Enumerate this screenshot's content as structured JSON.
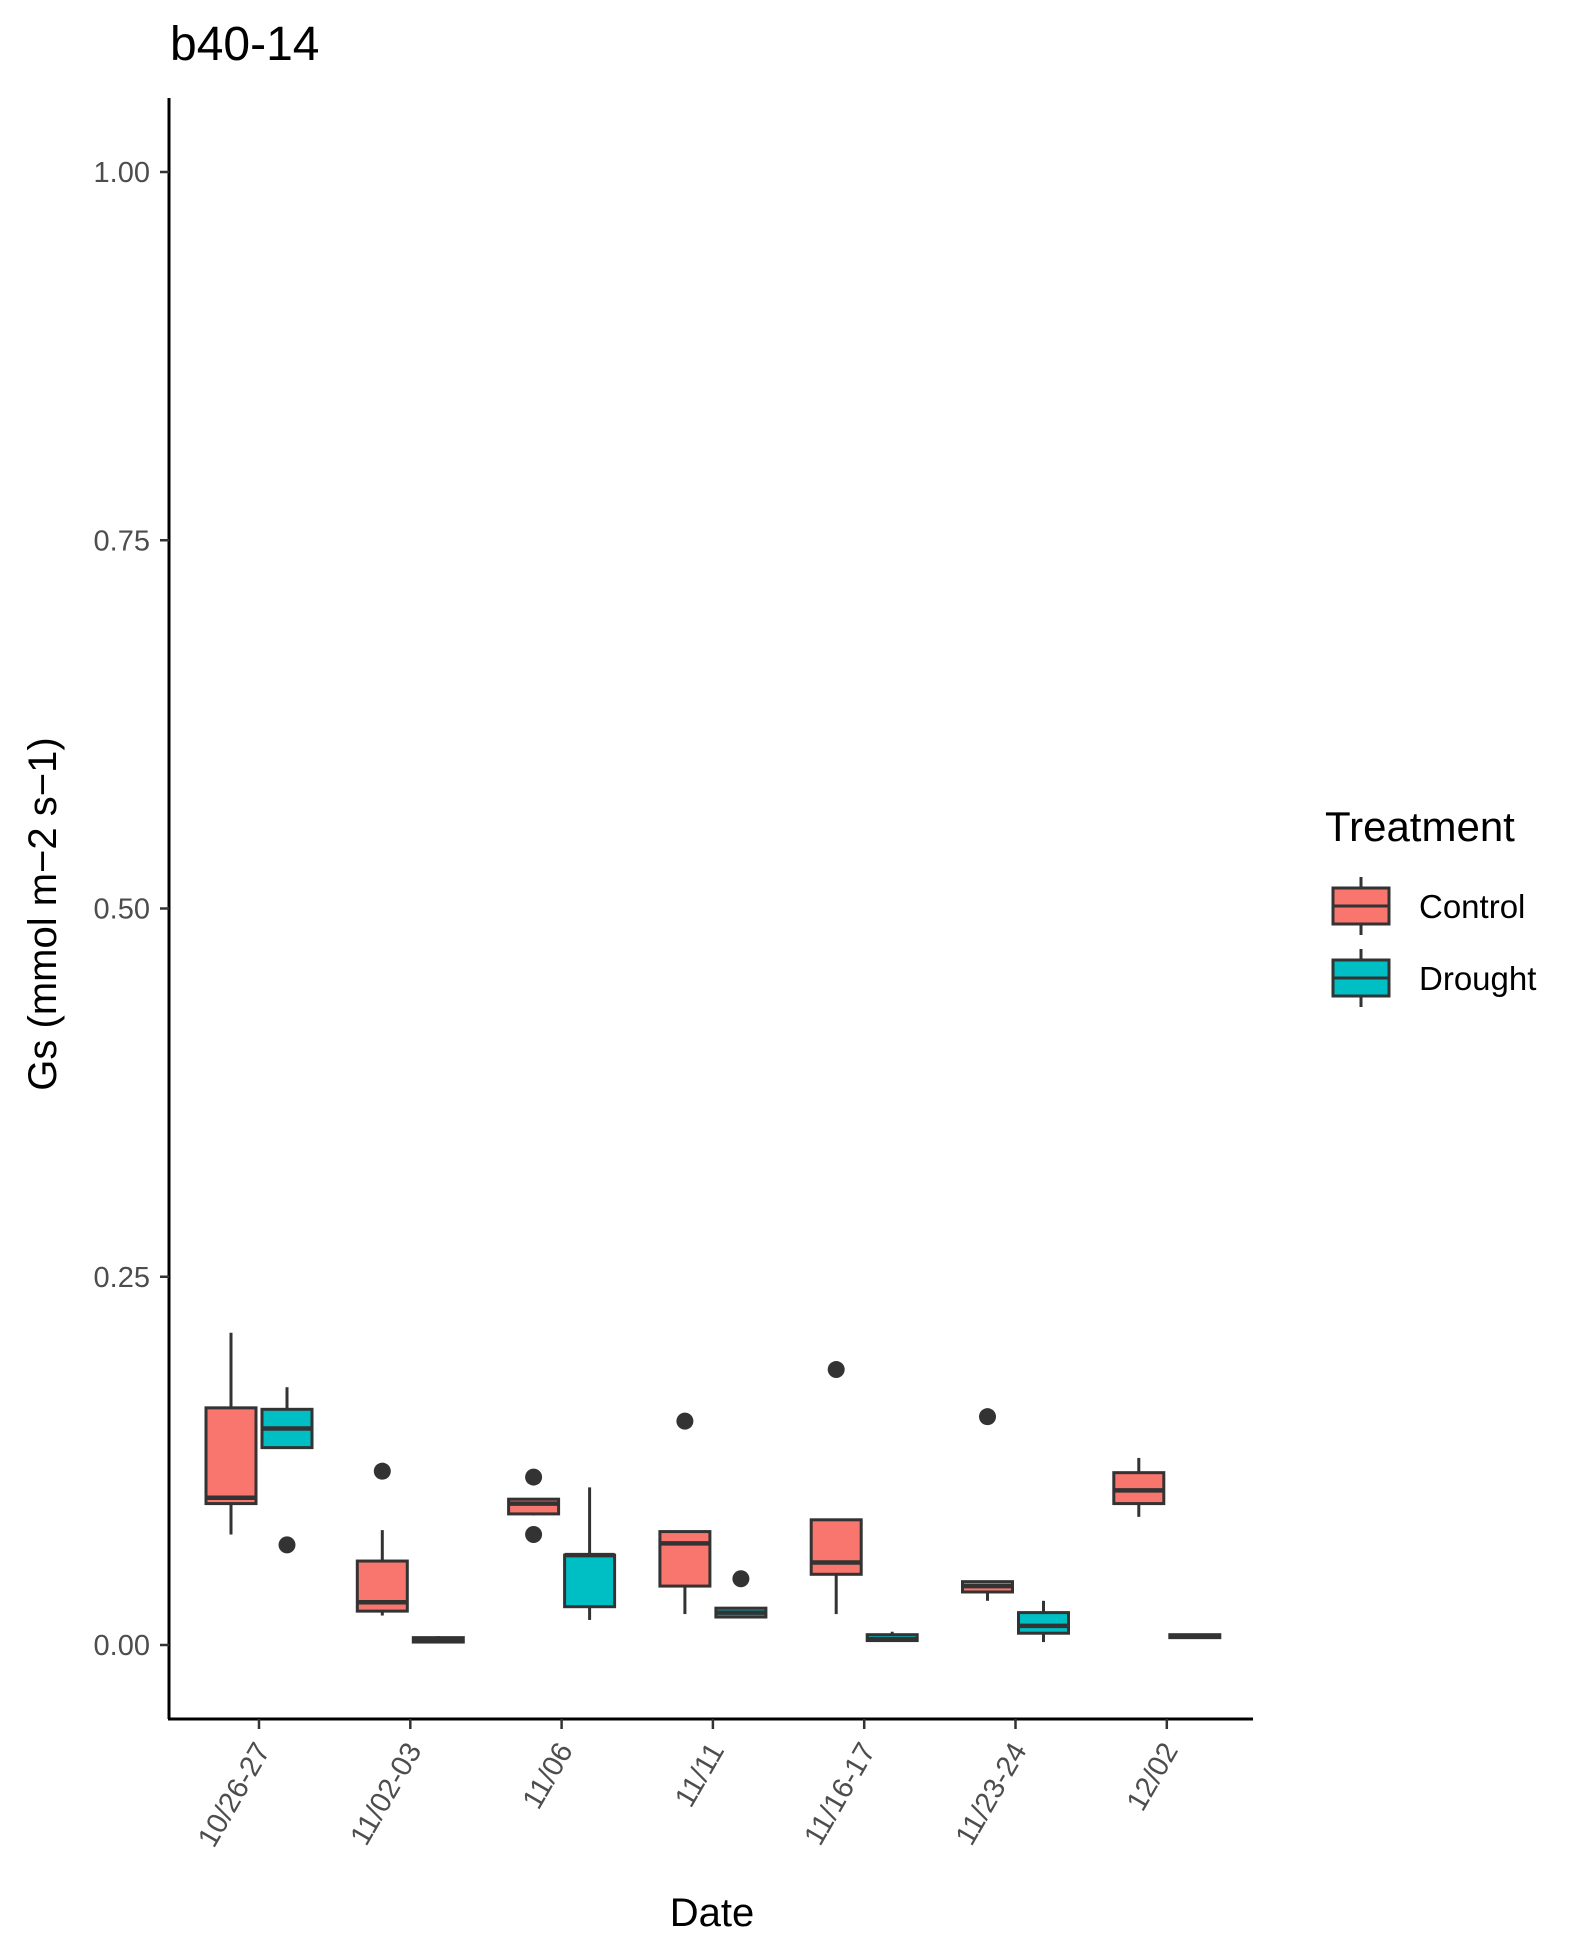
{
  "chart_data": {
    "type": "boxplot",
    "title": "b40-14",
    "xlabel": "Date",
    "ylabel": "Gs (mmol m−2 s−1)",
    "ylim": [
      -0.05,
      1.05
    ],
    "yticks": [
      0.0,
      0.25,
      0.5,
      0.75,
      1.0
    ],
    "ytick_labels": [
      "0.00",
      "0.25",
      "0.50",
      "0.75",
      "1.00"
    ],
    "categories": [
      "10/26-27",
      "11/02-03",
      "11/06",
      "11/11",
      "11/16-17",
      "11/23-24",
      "12/02"
    ],
    "grid": false,
    "legend": {
      "title": "Treatment",
      "position": "right",
      "entries": [
        {
          "name": "Control",
          "color": "#F8766D"
        },
        {
          "name": "Drought",
          "color": "#00BFC4"
        }
      ]
    },
    "series": [
      {
        "name": "Control",
        "color": "#F8766D",
        "boxes": [
          {
            "category": "10/26-27",
            "whisker_low": 0.075,
            "q1": 0.096,
            "median": 0.1,
            "q3": 0.161,
            "whisker_high": 0.212,
            "outliers": []
          },
          {
            "category": "11/02-03",
            "whisker_low": 0.02,
            "q1": 0.023,
            "median": 0.029,
            "q3": 0.057,
            "whisker_high": 0.078,
            "outliers": [
              0.118
            ]
          },
          {
            "category": "11/06",
            "whisker_low": 0.088,
            "q1": 0.089,
            "median": 0.096,
            "q3": 0.099,
            "whisker_high": 0.099,
            "outliers": [
              0.114,
              0.075
            ]
          },
          {
            "category": "11/11",
            "whisker_low": 0.021,
            "q1": 0.04,
            "median": 0.069,
            "q3": 0.077,
            "whisker_high": 0.077,
            "outliers": [
              0.152
            ]
          },
          {
            "category": "11/16-17",
            "whisker_low": 0.021,
            "q1": 0.048,
            "median": 0.056,
            "q3": 0.085,
            "whisker_high": 0.085,
            "outliers": [
              0.187
            ]
          },
          {
            "category": "11/23-24",
            "whisker_low": 0.03,
            "q1": 0.036,
            "median": 0.04,
            "q3": 0.043,
            "whisker_high": 0.043,
            "outliers": [
              0.155
            ]
          },
          {
            "category": "12/02",
            "whisker_low": 0.087,
            "q1": 0.096,
            "median": 0.105,
            "q3": 0.117,
            "whisker_high": 0.127,
            "outliers": []
          }
        ]
      },
      {
        "name": "Drought",
        "color": "#00BFC4",
        "boxes": [
          {
            "category": "10/26-27",
            "whisker_low": 0.134,
            "q1": 0.134,
            "median": 0.147,
            "q3": 0.16,
            "whisker_high": 0.175,
            "outliers": [
              0.068
            ]
          },
          {
            "category": "11/02-03",
            "whisker_low": 0.002,
            "q1": 0.002,
            "median": 0.003,
            "q3": 0.005,
            "whisker_high": 0.006,
            "outliers": []
          },
          {
            "category": "11/06",
            "whisker_low": 0.017,
            "q1": 0.026,
            "median": 0.061,
            "q3": 0.061,
            "whisker_high": 0.107,
            "outliers": []
          },
          {
            "category": "11/11",
            "whisker_low": 0.018,
            "q1": 0.019,
            "median": 0.022,
            "q3": 0.025,
            "whisker_high": 0.025,
            "outliers": [
              0.045
            ]
          },
          {
            "category": "11/16-17",
            "whisker_low": 0.003,
            "q1": 0.003,
            "median": 0.004,
            "q3": 0.007,
            "whisker_high": 0.009,
            "outliers": []
          },
          {
            "category": "11/23-24",
            "whisker_low": 0.002,
            "q1": 0.008,
            "median": 0.013,
            "q3": 0.022,
            "whisker_high": 0.03,
            "outliers": []
          },
          {
            "category": "12/02",
            "whisker_low": 0.005,
            "q1": 0.005,
            "median": 0.006,
            "q3": 0.007,
            "whisker_high": 0.007,
            "outliers": []
          }
        ]
      }
    ]
  }
}
